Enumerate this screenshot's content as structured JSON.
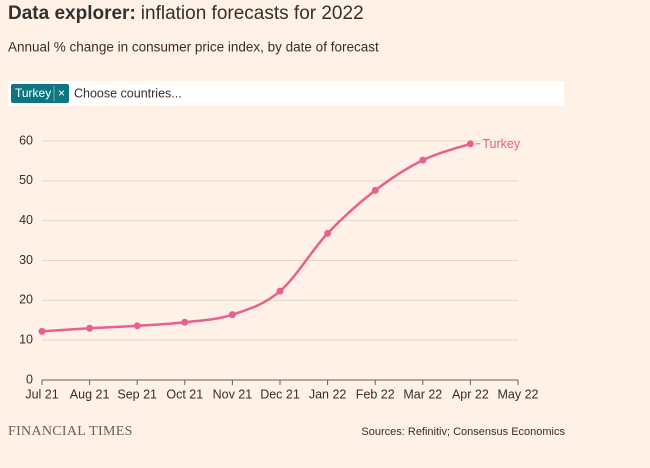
{
  "header": {
    "title_lead": "Data explorer:",
    "title": "inflation forecasts for 2022",
    "subtitle": "Annual % change in consumer price index, by date of forecast"
  },
  "filter": {
    "selected": [
      "Turkey"
    ],
    "remove": "×",
    "placeholder": "Choose countries..."
  },
  "chart_data": {
    "type": "line",
    "categories": [
      "Jul 21",
      "Aug 21",
      "Sep 21",
      "Oct 21",
      "Nov 21",
      "Dec 21",
      "Jan 22",
      "Feb 22",
      "Mar 22",
      "Apr 22",
      "May 22"
    ],
    "series": [
      {
        "name": "Turkey",
        "color": "#e8608e",
        "values": [
          12.2,
          13.0,
          13.6,
          14.5,
          16.4,
          22.3,
          36.8,
          47.6,
          55.2,
          59.3,
          null
        ]
      }
    ],
    "ylim": [
      0,
      60
    ],
    "yticks": [
      0,
      10,
      20,
      30,
      40,
      50,
      60
    ],
    "grid": true
  },
  "footer": {
    "brand": "FINANCIAL TIMES",
    "source": "Sources: Refinitiv; Consensus Economics"
  }
}
